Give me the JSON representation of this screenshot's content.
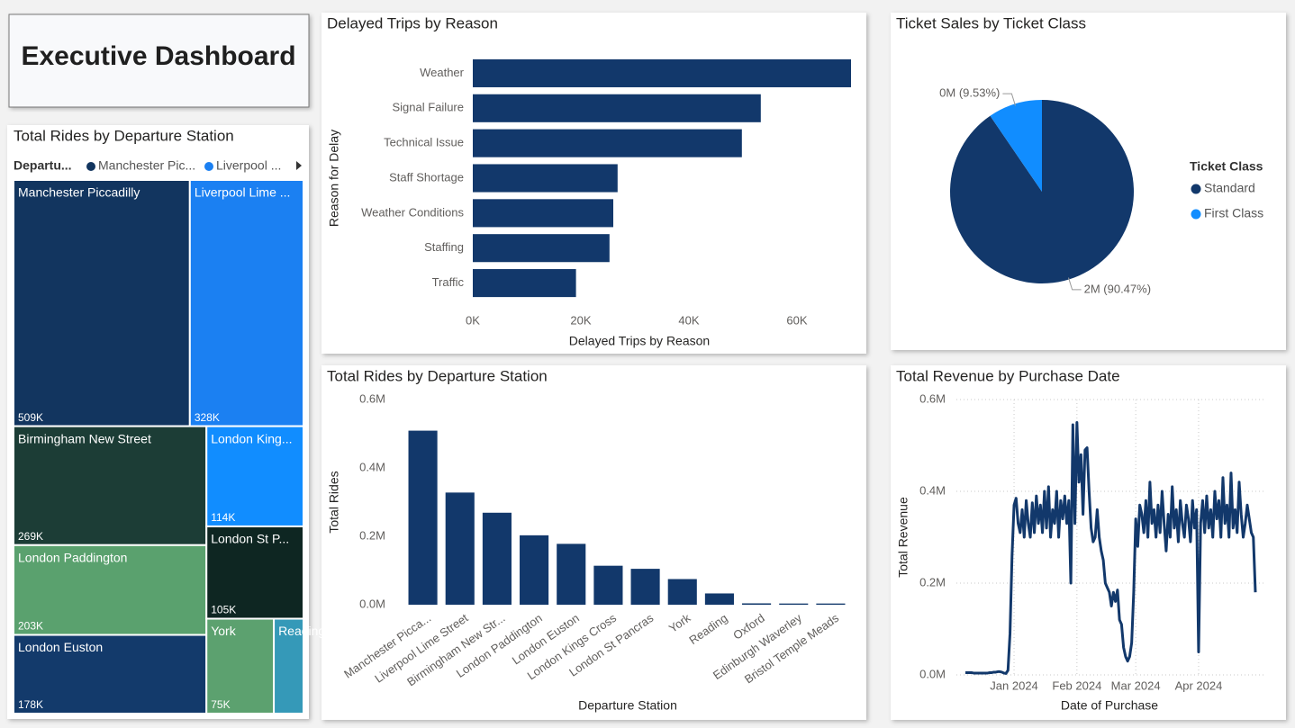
{
  "title": "Executive Dashboard",
  "chart_data": [
    {
      "type": "treemap",
      "title": "Total Rides by Departure Station",
      "legend_title": "Departu...",
      "legend_labels": [
        "Manchester Pic...",
        "Liverpool ..."
      ],
      "categories": [
        "Manchester Piccadilly",
        "Liverpool Lime ...",
        "Birmingham New Street",
        "London Paddington",
        "London Euston",
        "London King...",
        "London St P...",
        "York",
        "Reading"
      ],
      "values": [
        509000,
        328000,
        269000,
        203000,
        178000,
        114000,
        105000,
        75000,
        33000
      ],
      "value_labels": [
        "509K",
        "328K",
        "269K",
        "203K",
        "178K",
        "114K",
        "105K",
        "75K",
        null
      ],
      "colors": [
        "#12355f",
        "#1b80f2",
        "#1c3d36",
        "#5aa16e",
        "#133a6b",
        "#118dff",
        "#0e2622",
        "#5ca16f",
        "#3599b8"
      ]
    },
    {
      "type": "hbar",
      "title": "Delayed Trips by Reason",
      "xlabel": "Delayed Trips by Reason",
      "ylabel": "Reason for Delay",
      "categories": [
        "Weather",
        "Signal Failure",
        "Technical Issue",
        "Staff Shortage",
        "Weather Conditions",
        "Staffing",
        "Traffic"
      ],
      "values": [
        70000,
        53300,
        49800,
        26800,
        26000,
        25300,
        19100
      ],
      "color": "#12386b",
      "xlim": [
        0,
        70000
      ],
      "xticks": [
        {
          "value": 0,
          "label": "0K"
        },
        {
          "value": 20000,
          "label": "20K"
        },
        {
          "value": 40000,
          "label": "40K"
        },
        {
          "value": 60000,
          "label": "60K"
        }
      ]
    },
    {
      "type": "bar",
      "title": "Total Rides by Departure Station",
      "xlabel": "Departure Station",
      "ylabel": "Total Rides",
      "categories": [
        "Manchester Picca...",
        "Liverpool Lime Street",
        "Birmingham New Str...",
        "London Paddington",
        "London Euston",
        "London Kings Cross",
        "London St Pancras",
        "York",
        "Reading",
        "Oxford",
        "Edinburgh Waverley",
        "Bristol Temple Meads"
      ],
      "values": [
        509000,
        328000,
        269000,
        203000,
        178000,
        114000,
        105000,
        75000,
        33000,
        4000,
        3500,
        3500
      ],
      "color": "#12386b",
      "ylim": [
        0,
        600000
      ],
      "yticks": [
        {
          "value": 0,
          "label": "0.0M"
        },
        {
          "value": 200000,
          "label": "0.2M"
        },
        {
          "value": 400000,
          "label": "0.4M"
        },
        {
          "value": 600000,
          "label": "0.6M"
        }
      ]
    },
    {
      "type": "pie",
      "title": "Ticket Sales by Ticket Class",
      "legend_title": "Ticket Class",
      "categories": [
        "Standard",
        "First Class"
      ],
      "values": [
        90.47,
        9.53
      ],
      "value_labels": [
        "2M (90.47%)",
        "0M (9.53%)"
      ],
      "colors": [
        "#12386b",
        "#118dff"
      ]
    },
    {
      "type": "line",
      "title": "Total Revenue by Purchase Date",
      "xlabel": "Date of Purchase",
      "ylabel": "Total Revenue",
      "color": "#12386b",
      "grid": true,
      "values": [
        5000,
        5000,
        5000,
        5000,
        4000,
        4000,
        4000,
        4000,
        4000,
        4000,
        4000,
        4000,
        5000,
        5000,
        6000,
        6000,
        7000,
        7000,
        6000,
        4000,
        3000,
        10000,
        90000,
        260000,
        370000,
        385000,
        330000,
        310000,
        360000,
        300000,
        380000,
        330000,
        300000,
        375000,
        310000,
        390000,
        330000,
        370000,
        310000,
        400000,
        320000,
        410000,
        300000,
        360000,
        330000,
        400000,
        300000,
        380000,
        340000,
        390000,
        330000,
        380000,
        200000,
        545000,
        330000,
        550000,
        420000,
        480000,
        350000,
        490000,
        495000,
        400000,
        320000,
        290000,
        300000,
        360000,
        300000,
        270000,
        250000,
        200000,
        190000,
        180000,
        150000,
        180000,
        160000,
        185000,
        120000,
        110000,
        60000,
        40000,
        30000,
        40000,
        70000,
        180000,
        340000,
        280000,
        370000,
        350000,
        310000,
        380000,
        300000,
        420000,
        330000,
        360000,
        300000,
        370000,
        310000,
        400000,
        330000,
        270000,
        350000,
        300000,
        410000,
        320000,
        360000,
        290000,
        380000,
        330000,
        300000,
        370000,
        340000,
        290000,
        380000,
        320000,
        360000,
        50000,
        330000,
        380000,
        310000,
        390000,
        320000,
        360000,
        300000,
        400000,
        340000,
        380000,
        300000,
        430000,
        330000,
        370000,
        300000,
        440000,
        320000,
        360000,
        310000,
        420000,
        350000,
        300000,
        330000,
        370000,
        340000,
        310000,
        300000,
        180000
      ],
      "xlim": [
        0,
        143
      ],
      "xticks": [
        {
          "value": 24,
          "label": "Jan 2024"
        },
        {
          "value": 55,
          "label": "Feb 2024"
        },
        {
          "value": 84,
          "label": "Mar 2024"
        },
        {
          "value": 115,
          "label": "Apr 2024"
        }
      ],
      "ylim": [
        0,
        600000
      ],
      "yticks": [
        {
          "value": 0,
          "label": "0.0M"
        },
        {
          "value": 200000,
          "label": "0.2M"
        },
        {
          "value": 400000,
          "label": "0.4M"
        },
        {
          "value": 600000,
          "label": "0.6M"
        }
      ]
    }
  ]
}
